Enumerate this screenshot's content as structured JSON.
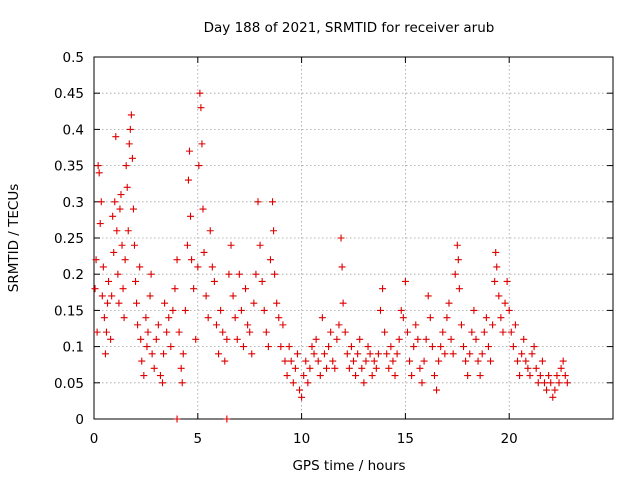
{
  "chart_data": {
    "type": "scatter",
    "title": "Day 188 of 2021, SRMTID for receiver arub",
    "xlabel": "GPS time / hours",
    "ylabel": "SRMTID / TECUs",
    "xlim": [
      0,
      25
    ],
    "ylim": [
      0,
      0.5
    ],
    "xticks": [
      0,
      5,
      10,
      15,
      20
    ],
    "xtick_labels": [
      "0",
      "5",
      "10",
      "15",
      "20"
    ],
    "yticks": [
      0,
      0.05,
      0.1,
      0.15,
      0.2,
      0.25,
      0.3,
      0.35,
      0.4,
      0.45,
      0.5
    ],
    "ytick_labels": [
      "0",
      "0.05",
      "0.1",
      "0.15",
      "0.2",
      "0.25",
      "0.3",
      "0.35",
      "0.4",
      "0.45",
      "0.5"
    ],
    "grid": true,
    "marker": "+",
    "color": "#dd0000",
    "series": [
      {
        "name": "SRMTID",
        "points": [
          [
            0.05,
            0.18
          ],
          [
            0.1,
            0.22
          ],
          [
            0.15,
            0.12
          ],
          [
            0.2,
            0.35
          ],
          [
            0.25,
            0.34
          ],
          [
            0.3,
            0.27
          ],
          [
            0.35,
            0.3
          ],
          [
            0.4,
            0.17
          ],
          [
            0.45,
            0.21
          ],
          [
            0.5,
            0.14
          ],
          [
            0.55,
            0.09
          ],
          [
            0.6,
            0.12
          ],
          [
            0.65,
            0.16
          ],
          [
            0.7,
            0.19
          ],
          [
            0.8,
            0.11
          ],
          [
            0.85,
            0.17
          ],
          [
            0.9,
            0.28
          ],
          [
            0.95,
            0.23
          ],
          [
            1.0,
            0.3
          ],
          [
            1.05,
            0.39
          ],
          [
            1.1,
            0.26
          ],
          [
            1.15,
            0.2
          ],
          [
            1.2,
            0.16
          ],
          [
            1.25,
            0.29
          ],
          [
            1.3,
            0.31
          ],
          [
            1.35,
            0.24
          ],
          [
            1.4,
            0.18
          ],
          [
            1.45,
            0.14
          ],
          [
            1.5,
            0.22
          ],
          [
            1.55,
            0.35
          ],
          [
            1.6,
            0.32
          ],
          [
            1.65,
            0.26
          ],
          [
            1.7,
            0.38
          ],
          [
            1.75,
            0.4
          ],
          [
            1.8,
            0.42
          ],
          [
            1.85,
            0.36
          ],
          [
            1.9,
            0.29
          ],
          [
            1.95,
            0.24
          ],
          [
            2.0,
            0.19
          ],
          [
            2.05,
            0.16
          ],
          [
            2.1,
            0.13
          ],
          [
            2.2,
            0.21
          ],
          [
            2.25,
            0.11
          ],
          [
            2.3,
            0.08
          ],
          [
            2.4,
            0.06
          ],
          [
            2.5,
            0.14
          ],
          [
            2.55,
            0.1
          ],
          [
            2.6,
            0.12
          ],
          [
            2.7,
            0.17
          ],
          [
            2.75,
            0.2
          ],
          [
            2.8,
            0.09
          ],
          [
            2.9,
            0.07
          ],
          [
            3.0,
            0.11
          ],
          [
            3.1,
            0.13
          ],
          [
            3.2,
            0.06
          ],
          [
            3.3,
            0.05
          ],
          [
            3.35,
            0.09
          ],
          [
            3.4,
            0.16
          ],
          [
            3.5,
            0.12
          ],
          [
            3.6,
            0.14
          ],
          [
            3.7,
            0.1
          ],
          [
            3.8,
            0.15
          ],
          [
            3.9,
            0.18
          ],
          [
            4.0,
            0.22
          ],
          [
            4.1,
            0.12
          ],
          [
            4.2,
            0.07
          ],
          [
            4.25,
            0.05
          ],
          [
            4.3,
            0.09
          ],
          [
            4.4,
            0.15
          ],
          [
            4.5,
            0.24
          ],
          [
            4.55,
            0.33
          ],
          [
            4.6,
            0.37
          ],
          [
            4.65,
            0.28
          ],
          [
            4.7,
            0.22
          ],
          [
            4.8,
            0.18
          ],
          [
            4.9,
            0.11
          ],
          [
            5.0,
            0.21
          ],
          [
            5.05,
            0.35
          ],
          [
            5.1,
            0.45
          ],
          [
            5.15,
            0.43
          ],
          [
            5.2,
            0.38
          ],
          [
            5.25,
            0.29
          ],
          [
            5.3,
            0.23
          ],
          [
            5.4,
            0.17
          ],
          [
            5.5,
            0.14
          ],
          [
            5.6,
            0.26
          ],
          [
            5.7,
            0.21
          ],
          [
            5.8,
            0.19
          ],
          [
            5.9,
            0.13
          ],
          [
            6.0,
            0.09
          ],
          [
            6.1,
            0.15
          ],
          [
            6.2,
            0.12
          ],
          [
            6.3,
            0.08
          ],
          [
            6.4,
            0.11
          ],
          [
            6.5,
            0.2
          ],
          [
            6.6,
            0.24
          ],
          [
            6.7,
            0.17
          ],
          [
            6.8,
            0.14
          ],
          [
            6.9,
            0.11
          ],
          [
            7.0,
            0.2
          ],
          [
            7.1,
            0.15
          ],
          [
            7.2,
            0.1
          ],
          [
            7.3,
            0.18
          ],
          [
            7.4,
            0.13
          ],
          [
            7.5,
            0.12
          ],
          [
            7.6,
            0.09
          ],
          [
            7.7,
            0.16
          ],
          [
            7.8,
            0.2
          ],
          [
            7.9,
            0.3
          ],
          [
            8.0,
            0.24
          ],
          [
            8.1,
            0.19
          ],
          [
            8.2,
            0.15
          ],
          [
            8.3,
            0.12
          ],
          [
            8.4,
            0.1
          ],
          [
            8.5,
            0.22
          ],
          [
            8.6,
            0.3
          ],
          [
            8.65,
            0.26
          ],
          [
            8.7,
            0.2
          ],
          [
            8.8,
            0.16
          ],
          [
            8.9,
            0.14
          ],
          [
            9.0,
            0.1
          ],
          [
            9.1,
            0.13
          ],
          [
            9.2,
            0.08
          ],
          [
            9.3,
            0.06
          ],
          [
            9.4,
            0.1
          ],
          [
            9.5,
            0.08
          ],
          [
            9.6,
            0.05
          ],
          [
            9.7,
            0.07
          ],
          [
            9.8,
            0.09
          ],
          [
            9.9,
            0.04
          ],
          [
            10.0,
            0.03
          ],
          [
            10.1,
            0.06
          ],
          [
            10.2,
            0.08
          ],
          [
            10.3,
            0.05
          ],
          [
            10.4,
            0.07
          ],
          [
            10.5,
            0.1
          ],
          [
            10.6,
            0.09
          ],
          [
            10.7,
            0.11
          ],
          [
            10.8,
            0.08
          ],
          [
            10.9,
            0.06
          ],
          [
            11.0,
            0.14
          ],
          [
            11.1,
            0.09
          ],
          [
            11.2,
            0.07
          ],
          [
            11.3,
            0.1
          ],
          [
            11.4,
            0.12
          ],
          [
            11.5,
            0.08
          ],
          [
            11.6,
            0.07
          ],
          [
            11.7,
            0.11
          ],
          [
            11.8,
            0.13
          ],
          [
            11.9,
            0.25
          ],
          [
            11.95,
            0.21
          ],
          [
            12.0,
            0.16
          ],
          [
            12.1,
            0.12
          ],
          [
            12.2,
            0.09
          ],
          [
            12.3,
            0.07
          ],
          [
            12.4,
            0.1
          ],
          [
            12.5,
            0.08
          ],
          [
            12.6,
            0.06
          ],
          [
            12.7,
            0.09
          ],
          [
            12.8,
            0.11
          ],
          [
            12.9,
            0.07
          ],
          [
            13.0,
            0.05
          ],
          [
            13.1,
            0.08
          ],
          [
            13.2,
            0.1
          ],
          [
            13.3,
            0.09
          ],
          [
            13.4,
            0.06
          ],
          [
            13.5,
            0.08
          ],
          [
            13.6,
            0.07
          ],
          [
            13.7,
            0.09
          ],
          [
            13.8,
            0.15
          ],
          [
            13.9,
            0.18
          ],
          [
            14.0,
            0.12
          ],
          [
            14.1,
            0.09
          ],
          [
            14.2,
            0.07
          ],
          [
            14.3,
            0.1
          ],
          [
            14.4,
            0.08
          ],
          [
            14.5,
            0.06
          ],
          [
            14.6,
            0.09
          ],
          [
            14.7,
            0.11
          ],
          [
            14.8,
            0.15
          ],
          [
            14.9,
            0.14
          ],
          [
            15.0,
            0.19
          ],
          [
            15.1,
            0.12
          ],
          [
            15.2,
            0.08
          ],
          [
            15.3,
            0.06
          ],
          [
            15.4,
            0.1
          ],
          [
            15.5,
            0.13
          ],
          [
            15.6,
            0.11
          ],
          [
            15.7,
            0.07
          ],
          [
            15.8,
            0.05
          ],
          [
            15.9,
            0.08
          ],
          [
            16.0,
            0.11
          ],
          [
            16.1,
            0.17
          ],
          [
            16.2,
            0.14
          ],
          [
            16.3,
            0.1
          ],
          [
            16.4,
            0.06
          ],
          [
            16.5,
            0.04
          ],
          [
            16.6,
            0.08
          ],
          [
            16.7,
            0.1
          ],
          [
            16.8,
            0.12
          ],
          [
            16.9,
            0.09
          ],
          [
            17.0,
            0.14
          ],
          [
            17.1,
            0.16
          ],
          [
            17.2,
            0.11
          ],
          [
            17.3,
            0.09
          ],
          [
            17.4,
            0.2
          ],
          [
            17.5,
            0.24
          ],
          [
            17.55,
            0.22
          ],
          [
            17.6,
            0.18
          ],
          [
            17.7,
            0.13
          ],
          [
            17.8,
            0.1
          ],
          [
            17.9,
            0.08
          ],
          [
            18.0,
            0.06
          ],
          [
            18.1,
            0.09
          ],
          [
            18.2,
            0.12
          ],
          [
            18.3,
            0.15
          ],
          [
            18.4,
            0.11
          ],
          [
            18.5,
            0.08
          ],
          [
            18.6,
            0.06
          ],
          [
            18.7,
            0.09
          ],
          [
            18.8,
            0.12
          ],
          [
            18.9,
            0.14
          ],
          [
            19.0,
            0.1
          ],
          [
            19.1,
            0.08
          ],
          [
            19.2,
            0.13
          ],
          [
            19.3,
            0.19
          ],
          [
            19.35,
            0.23
          ],
          [
            19.4,
            0.21
          ],
          [
            19.5,
            0.17
          ],
          [
            19.6,
            0.14
          ],
          [
            19.7,
            0.12
          ],
          [
            19.8,
            0.16
          ],
          [
            19.9,
            0.19
          ],
          [
            20.0,
            0.15
          ],
          [
            20.1,
            0.12
          ],
          [
            20.2,
            0.1
          ],
          [
            20.3,
            0.13
          ],
          [
            20.4,
            0.08
          ],
          [
            20.5,
            0.06
          ],
          [
            20.6,
            0.09
          ],
          [
            20.7,
            0.11
          ],
          [
            20.8,
            0.08
          ],
          [
            20.9,
            0.07
          ],
          [
            21.0,
            0.06
          ],
          [
            21.1,
            0.09
          ],
          [
            21.2,
            0.1
          ],
          [
            21.3,
            0.07
          ],
          [
            21.4,
            0.05
          ],
          [
            21.5,
            0.06
          ],
          [
            21.6,
            0.08
          ],
          [
            21.7,
            0.05
          ],
          [
            21.8,
            0.04
          ],
          [
            21.9,
            0.06
          ],
          [
            22.0,
            0.05
          ],
          [
            22.1,
            0.03
          ],
          [
            22.2,
            0.04
          ],
          [
            22.3,
            0.06
          ],
          [
            22.4,
            0.05
          ],
          [
            22.5,
            0.07
          ],
          [
            22.6,
            0.08
          ],
          [
            22.7,
            0.06
          ],
          [
            22.8,
            0.05
          ],
          [
            4.0,
            0.0
          ],
          [
            6.4,
            0.0
          ]
        ]
      }
    ]
  }
}
